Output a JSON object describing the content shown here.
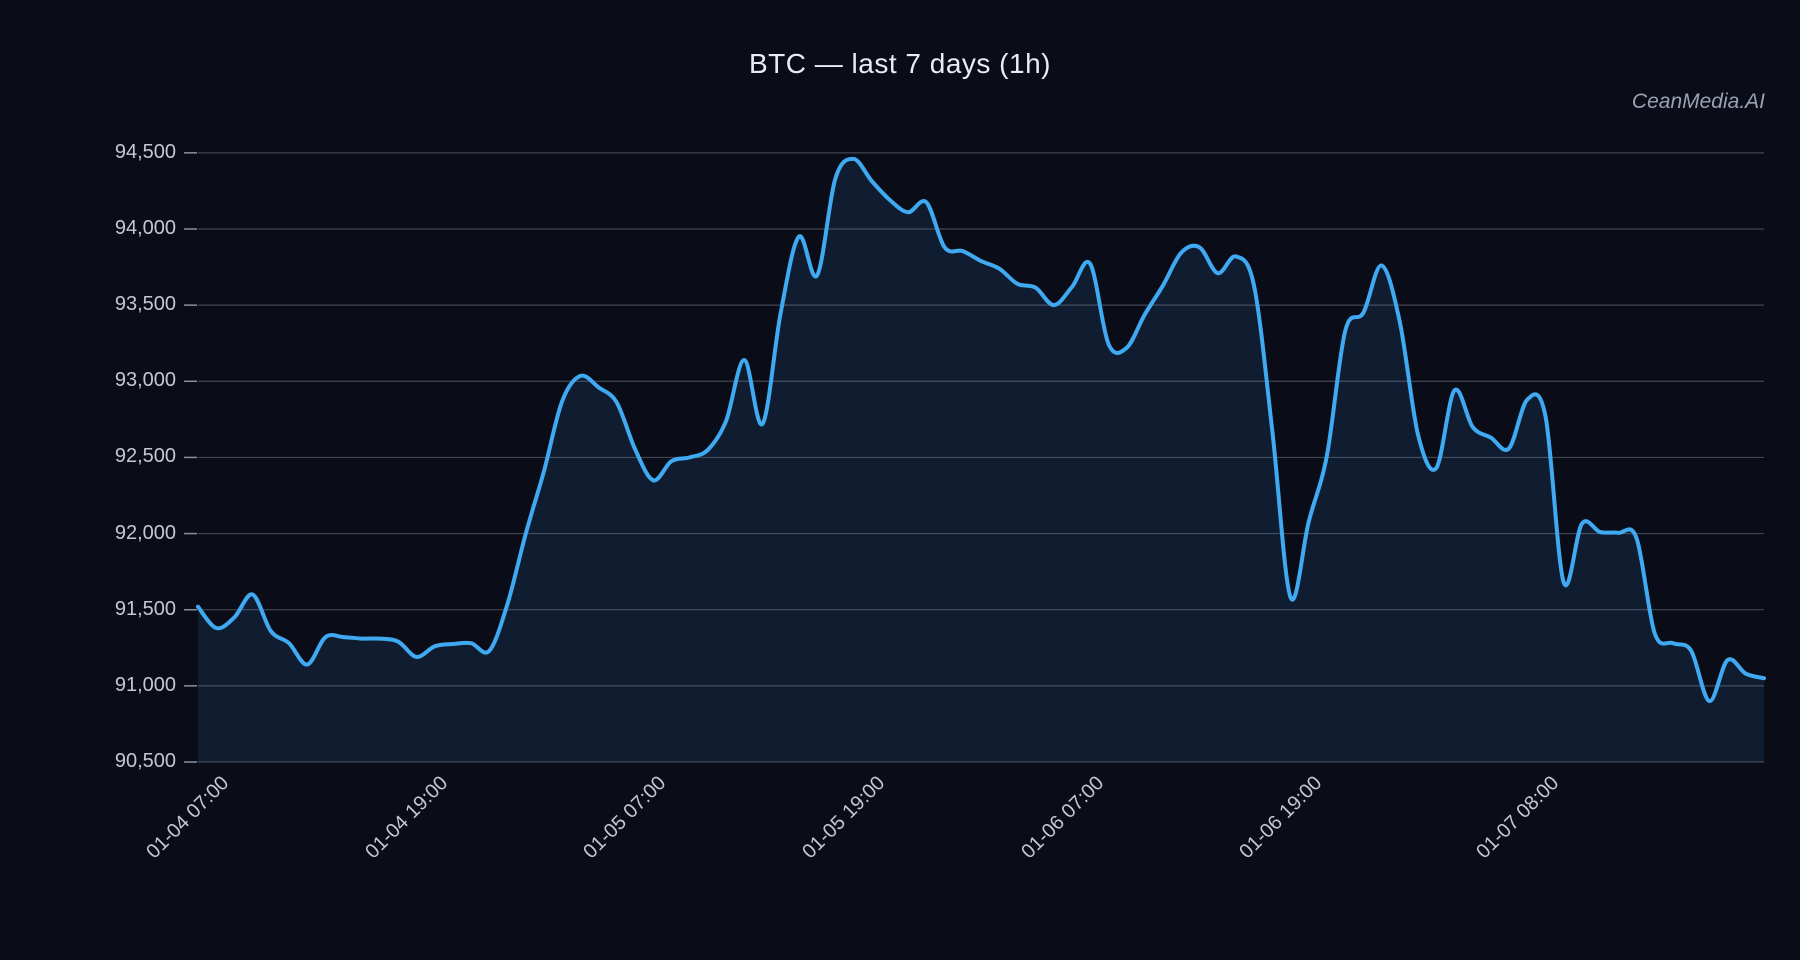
{
  "title": "BTC — last 7 days (1h)",
  "watermark": "CeanMedia.AI",
  "colors": {
    "background": "#0a0d18",
    "line": "#3fa9f1",
    "fill": "rgba(64,150,228,0.12)",
    "grid": "rgba(168,176,192,0.35)",
    "tick_mark": "#8a90a0",
    "tick_label": "#c3c8d4",
    "title": "#e9ecf4",
    "watermark": "#9aa2b2"
  },
  "chart_data": {
    "type": "line",
    "title": "BTC — last 7 days (1h)",
    "xlabel": "",
    "ylabel": "",
    "legend": "none",
    "grid": "horizontal",
    "ylim": [
      90500,
      94650
    ],
    "xlim_hours": [
      0,
      86
    ],
    "y_ticks": [
      90500,
      91000,
      91500,
      92000,
      92500,
      93000,
      93500,
      94000,
      94500
    ],
    "y_tick_labels": [
      "90,500",
      "91,000",
      "91,500",
      "92,000",
      "92,500",
      "93,000",
      "93,500",
      "94,000",
      "94,500"
    ],
    "x_tick_labels": [
      "01-04 07:00",
      "01-04 19:00",
      "01-05 07:00",
      "01-05 19:00",
      "01-06 07:00",
      "01-06 19:00",
      "01-07 08:00"
    ],
    "x_tick_hours": [
      1,
      13,
      25,
      37,
      49,
      61,
      74
    ],
    "series": [
      {
        "name": "BTC",
        "x": [
          "01-04 06:00",
          "01-04 07:00",
          "01-04 08:00",
          "01-04 09:00",
          "01-04 10:00",
          "01-04 11:00",
          "01-04 12:00",
          "01-04 13:00",
          "01-04 14:00",
          "01-04 15:00",
          "01-04 16:00",
          "01-04 17:00",
          "01-04 18:00",
          "01-04 19:00",
          "01-04 20:00",
          "01-04 21:00",
          "01-04 22:00",
          "01-04 23:00",
          "01-05 00:00",
          "01-05 01:00",
          "01-05 02:00",
          "01-05 03:00",
          "01-05 04:00",
          "01-05 05:00",
          "01-05 06:00",
          "01-05 07:00",
          "01-05 08:00",
          "01-05 09:00",
          "01-05 10:00",
          "01-05 11:00",
          "01-05 12:00",
          "01-05 13:00",
          "01-05 14:00",
          "01-05 15:00",
          "01-05 16:00",
          "01-05 17:00",
          "01-05 18:00",
          "01-05 19:00",
          "01-05 20:00",
          "01-05 21:00",
          "01-05 22:00",
          "01-05 23:00",
          "01-06 00:00",
          "01-06 01:00",
          "01-06 02:00",
          "01-06 03:00",
          "01-06 04:00",
          "01-06 05:00",
          "01-06 06:00",
          "01-06 07:00",
          "01-06 08:00",
          "01-06 09:00",
          "01-06 10:00",
          "01-06 11:00",
          "01-06 12:00",
          "01-06 13:00",
          "01-06 14:00",
          "01-06 15:00",
          "01-06 16:00",
          "01-06 17:00",
          "01-06 18:00",
          "01-06 19:00",
          "01-06 20:00",
          "01-06 21:00",
          "01-06 22:00",
          "01-06 23:00",
          "01-07 00:00",
          "01-07 01:00",
          "01-07 02:00",
          "01-07 03:00",
          "01-07 04:00",
          "01-07 05:00",
          "01-07 06:00",
          "01-07 07:00",
          "01-07 08:00",
          "01-07 09:00",
          "01-07 10:00",
          "01-07 11:00",
          "01-07 12:00",
          "01-07 13:00",
          "01-07 14:00",
          "01-07 15:00",
          "01-07 16:00",
          "01-07 17:00",
          "01-07 18:00",
          "01-07 19:00",
          "01-07 20:00"
        ],
        "values": [
          91520,
          91380,
          91450,
          91600,
          91360,
          91280,
          91140,
          91320,
          91320,
          91310,
          91310,
          91290,
          91190,
          91260,
          91275,
          91280,
          91230,
          91540,
          92000,
          92410,
          92870,
          93035,
          92960,
          92860,
          92555,
          92350,
          92475,
          92500,
          92550,
          92740,
          93140,
          92720,
          93450,
          93950,
          93695,
          94330,
          94460,
          94315,
          94190,
          94110,
          94175,
          93880,
          93855,
          93790,
          93740,
          93640,
          93615,
          93500,
          93620,
          93770,
          93245,
          93220,
          93440,
          93630,
          93845,
          93880,
          93710,
          93820,
          93625,
          92675,
          91580,
          92080,
          92515,
          93330,
          93450,
          93760,
          93390,
          92650,
          92430,
          92940,
          92700,
          92630,
          92560,
          92880,
          92770,
          91680,
          92065,
          92010,
          92005,
          91970,
          91345,
          91280,
          91230,
          90900,
          91170,
          91080,
          91050
        ]
      }
    ]
  }
}
